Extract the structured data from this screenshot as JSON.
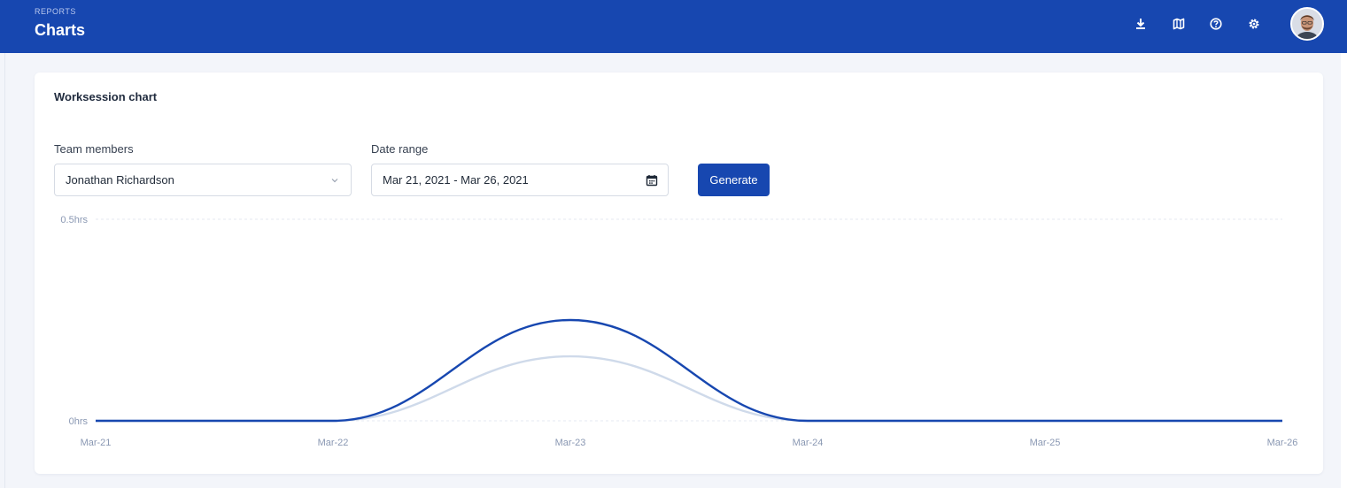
{
  "header": {
    "breadcrumb": "REPORTS",
    "title": "Charts",
    "icons": [
      "download-icon",
      "map-icon",
      "help-icon",
      "settings-icon"
    ],
    "background": "#1747b0"
  },
  "card": {
    "title": "Worksession chart",
    "team_members": {
      "label": "Team members",
      "value": "Jonathan Richardson"
    },
    "date_range": {
      "label": "Date range",
      "value": "Mar 21, 2021 - Mar 26, 2021"
    },
    "generate_label": "Generate"
  },
  "chart_data": {
    "type": "line",
    "categories": [
      "Mar-21",
      "Mar-22",
      "Mar-23",
      "Mar-24",
      "Mar-25",
      "Mar-26"
    ],
    "yticks": [
      {
        "value": 0,
        "label": "0hrs"
      },
      {
        "value": 0.5,
        "label": "0.5hrs"
      }
    ],
    "ylim": [
      0,
      0.5
    ],
    "grid": true,
    "series": [
      {
        "values": [
          0,
          0,
          0.25,
          0,
          0,
          0
        ],
        "color": "#1747b0"
      },
      {
        "values": [
          0,
          0,
          0.16,
          0,
          0,
          0
        ],
        "color": "#cfdaea"
      }
    ]
  }
}
